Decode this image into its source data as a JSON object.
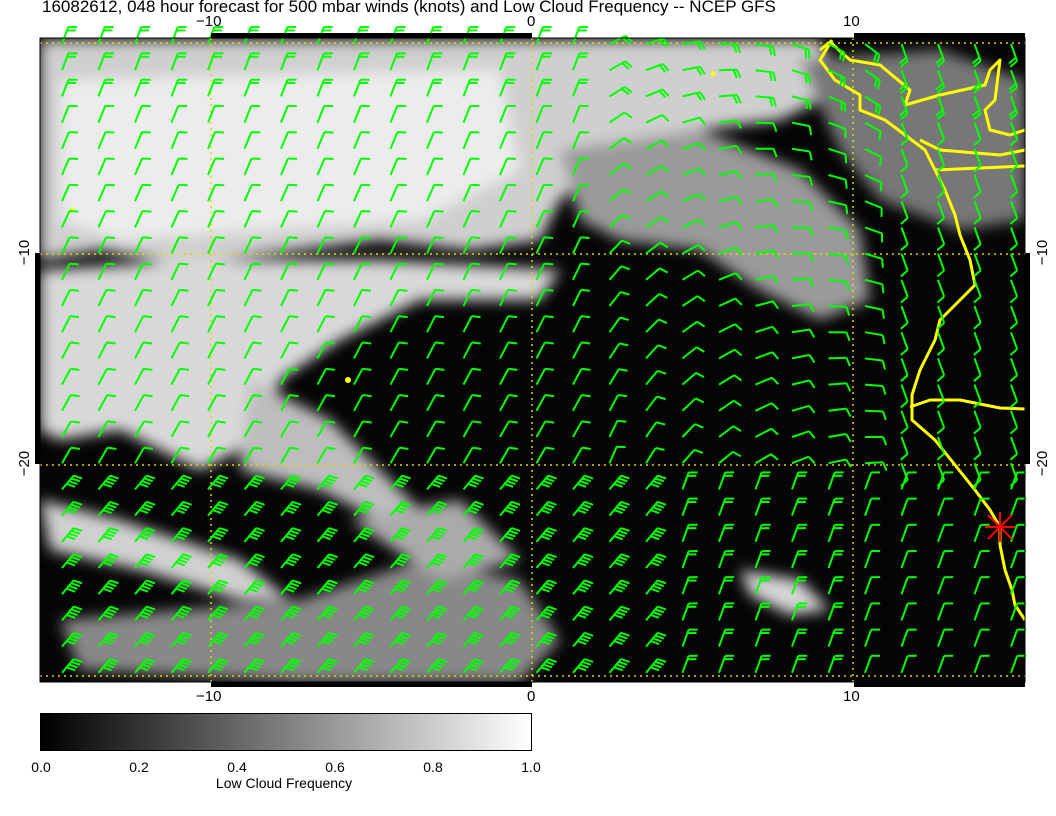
{
  "title": "16082612, 048 hour forecast for 500 mbar winds (knots) and Low Cloud Frequency -- NCEP GFS",
  "map": {
    "lon_range": [
      -15.3,
      15.3
    ],
    "lat_range": [
      -30.3,
      0.3
    ],
    "lon_ticks": [
      "−10",
      "0",
      "10"
    ],
    "lat_ticks": [
      "−10",
      "−20"
    ],
    "gridlines": "dotted",
    "grid_color": "#e6d200",
    "barb_color": "#00ff00",
    "coast_color": "#ffff00",
    "marker_color": "#ff0000",
    "background": "grayscale low cloud frequency"
  },
  "colorbar": {
    "label": "Low Cloud Frequency",
    "ticks": [
      "0.0",
      "0.2",
      "0.4",
      "0.6",
      "0.8",
      "1.0"
    ],
    "range": [
      0,
      1
    ],
    "colormap": "black to white"
  }
}
